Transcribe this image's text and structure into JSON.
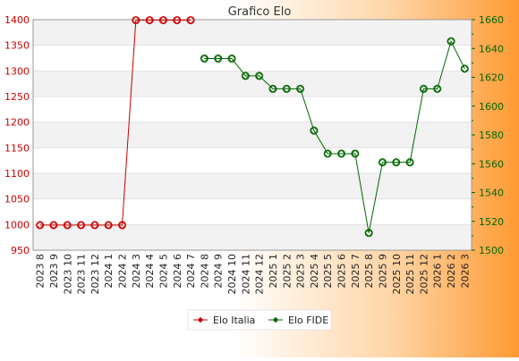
{
  "chart_data": {
    "type": "line",
    "title": "Grafico Elo",
    "categories": [
      "2023 8",
      "2023 9",
      "2023 10",
      "2023 11",
      "2023 12",
      "2024 1",
      "2024 2",
      "2024 3",
      "2024 4",
      "2024 5",
      "2024 6",
      "2024 7",
      "2024 8",
      "2024 9",
      "2024 10",
      "2024 11",
      "2024 12",
      "2025 1",
      "2025 2",
      "2025 3",
      "2025 4",
      "2025 5",
      "2025 6",
      "2025 7",
      "2025 8",
      "2025 9",
      "2025 10",
      "2025 11",
      "2025 12",
      "2026 1",
      "2026 2",
      "2026 3"
    ],
    "y_left": {
      "ticks": [
        950,
        1000,
        1050,
        1100,
        1150,
        1200,
        1250,
        1300,
        1350,
        1400
      ],
      "ylim": [
        950,
        1400
      ]
    },
    "y_right": {
      "ticks": [
        1500,
        1520,
        1540,
        1560,
        1580,
        1600,
        1620,
        1640,
        1660
      ],
      "ylim": [
        1500,
        1660
      ]
    },
    "grid": true,
    "legend_position": "bottom",
    "series": [
      {
        "name": "Elo Italia",
        "axis": "left",
        "color": "#cc0000",
        "values": [
          999,
          999,
          999,
          999,
          999,
          999,
          999,
          1399,
          1399,
          1399,
          1399,
          1399,
          null,
          null,
          null,
          null,
          null,
          null,
          null,
          null,
          null,
          null,
          null,
          null,
          null,
          null,
          null,
          null,
          null,
          null,
          null,
          null
        ]
      },
      {
        "name": "Elo FIDE",
        "axis": "right",
        "color": "#006600",
        "values": [
          null,
          null,
          null,
          null,
          null,
          null,
          null,
          null,
          null,
          null,
          null,
          null,
          1633,
          1633,
          1633,
          1621,
          1621,
          1612,
          1612,
          1612,
          1583,
          1567,
          1567,
          1567,
          1512,
          1561,
          1561,
          1561,
          1612,
          1612,
          1645,
          1626
        ]
      }
    ]
  }
}
